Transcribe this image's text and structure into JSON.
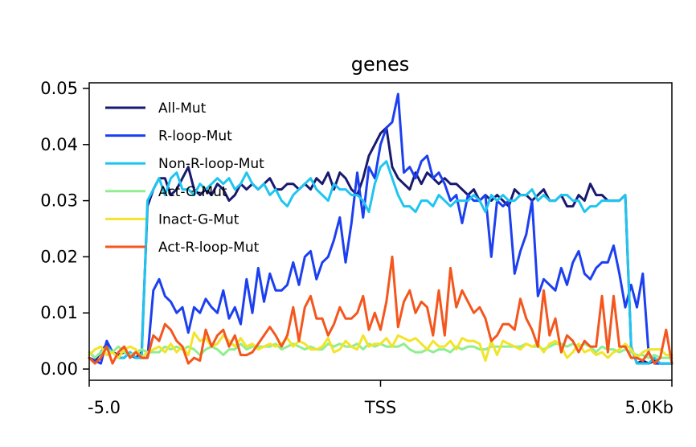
{
  "chart_data": {
    "type": "line",
    "title": "genes",
    "xlabel": "",
    "ylabel": "",
    "x_tick_labels": [
      "-5.0",
      "TSS",
      "5.0Kb"
    ],
    "x_range": [
      -5.0,
      5.0
    ],
    "ylim": [
      -0.002,
      0.051
    ],
    "y_ticks": [
      0.0,
      0.01,
      0.02,
      0.03,
      0.04,
      0.05
    ],
    "y_tick_labels": [
      "0.00",
      "0.01",
      "0.02",
      "0.03",
      "0.04",
      "0.05"
    ],
    "grid": false,
    "legend_position": "upper-left",
    "x": [
      -5.0,
      -4.9,
      -4.8,
      -4.7,
      -4.6,
      -4.5,
      -4.4,
      -4.3,
      -4.2,
      -4.1,
      -4.0,
      -3.9,
      -3.8,
      -3.7,
      -3.6,
      -3.5,
      -3.4,
      -3.3,
      -3.2,
      -3.1,
      -3.0,
      -2.9,
      -2.8,
      -2.7,
      -2.6,
      -2.5,
      -2.4,
      -2.3,
      -2.2,
      -2.1,
      -2.0,
      -1.9,
      -1.8,
      -1.7,
      -1.6,
      -1.5,
      -1.4,
      -1.3,
      -1.2,
      -1.1,
      -1.0,
      -0.9,
      -0.8,
      -0.7,
      -0.6,
      -0.5,
      -0.4,
      -0.3,
      -0.2,
      -0.1,
      0.0,
      0.1,
      0.2,
      0.3,
      0.4,
      0.5,
      0.6,
      0.7,
      0.8,
      0.9,
      1.0,
      1.1,
      1.2,
      1.3,
      1.4,
      1.5,
      1.6,
      1.7,
      1.8,
      1.9,
      2.0,
      2.1,
      2.2,
      2.3,
      2.4,
      2.5,
      2.6,
      2.7,
      2.8,
      2.9,
      3.0,
      3.1,
      3.2,
      3.3,
      3.4,
      3.5,
      3.6,
      3.7,
      3.8,
      3.9,
      4.0,
      4.1,
      4.2,
      4.3,
      4.4,
      4.5,
      4.6,
      4.7,
      4.8,
      4.9,
      5.0
    ],
    "series": [
      {
        "name": "All-Mut",
        "color": "#191970",
        "values": [
          0.002,
          0.0015,
          0.003,
          0.0045,
          0.003,
          0.0025,
          0.003,
          0.0025,
          0.002,
          0.003,
          0.029,
          0.032,
          0.034,
          0.034,
          0.031,
          0.032,
          0.034,
          0.036,
          0.032,
          0.031,
          0.032,
          0.031,
          0.033,
          0.032,
          0.03,
          0.031,
          0.033,
          0.032,
          0.033,
          0.032,
          0.033,
          0.034,
          0.032,
          0.032,
          0.033,
          0.033,
          0.032,
          0.033,
          0.032,
          0.034,
          0.033,
          0.035,
          0.032,
          0.035,
          0.034,
          0.032,
          0.031,
          0.034,
          0.038,
          0.04,
          0.042,
          0.043,
          0.036,
          0.034,
          0.033,
          0.032,
          0.035,
          0.033,
          0.035,
          0.034,
          0.033,
          0.034,
          0.033,
          0.033,
          0.032,
          0.031,
          0.032,
          0.03,
          0.031,
          0.03,
          0.031,
          0.03,
          0.029,
          0.032,
          0.031,
          0.031,
          0.03,
          0.031,
          0.032,
          0.03,
          0.03,
          0.031,
          0.029,
          0.029,
          0.031,
          0.03,
          0.033,
          0.031,
          0.031,
          0.03,
          0.03,
          0.03,
          0.031,
          0.004,
          0.001,
          0.0015,
          0.001,
          0.0015,
          0.001,
          0.001,
          0.001
        ]
      },
      {
        "name": "R-loop-Mut",
        "color": "#1c3ff0",
        "values": [
          0.002,
          0.0015,
          0.001,
          0.005,
          0.003,
          0.002,
          0.002,
          0.003,
          0.002,
          0.002,
          0.002,
          0.014,
          0.016,
          0.013,
          0.012,
          0.01,
          0.011,
          0.0065,
          0.011,
          0.01,
          0.0125,
          0.011,
          0.01,
          0.014,
          0.009,
          0.011,
          0.008,
          0.016,
          0.01,
          0.018,
          0.012,
          0.017,
          0.014,
          0.014,
          0.015,
          0.019,
          0.015,
          0.02,
          0.021,
          0.016,
          0.019,
          0.02,
          0.023,
          0.027,
          0.019,
          0.026,
          0.035,
          0.027,
          0.036,
          0.034,
          0.04,
          0.043,
          0.044,
          0.049,
          0.035,
          0.036,
          0.034,
          0.037,
          0.038,
          0.034,
          0.035,
          0.033,
          0.03,
          0.031,
          0.026,
          0.031,
          0.03,
          0.03,
          0.031,
          0.02,
          0.03,
          0.029,
          0.03,
          0.017,
          0.021,
          0.024,
          0.03,
          0.013,
          0.016,
          0.015,
          0.014,
          0.018,
          0.015,
          0.019,
          0.021,
          0.017,
          0.016,
          0.018,
          0.019,
          0.019,
          0.022,
          0.017,
          0.011,
          0.015,
          0.011,
          0.017,
          0.003,
          0.001,
          0.001,
          0.001,
          0.001
        ]
      },
      {
        "name": "Non-R-loop-Mut",
        "color": "#1ec5f0",
        "values": [
          0.003,
          0.002,
          0.003,
          0.004,
          0.003,
          0.002,
          0.002,
          0.003,
          0.002,
          0.002,
          0.03,
          0.032,
          0.034,
          0.031,
          0.034,
          0.035,
          0.032,
          0.032,
          0.031,
          0.033,
          0.032,
          0.033,
          0.034,
          0.033,
          0.034,
          0.032,
          0.033,
          0.035,
          0.033,
          0.032,
          0.033,
          0.031,
          0.032,
          0.03,
          0.029,
          0.031,
          0.032,
          0.033,
          0.034,
          0.032,
          0.031,
          0.03,
          0.033,
          0.032,
          0.032,
          0.031,
          0.031,
          0.03,
          0.028,
          0.033,
          0.036,
          0.037,
          0.034,
          0.031,
          0.029,
          0.029,
          0.028,
          0.03,
          0.03,
          0.029,
          0.031,
          0.03,
          0.029,
          0.03,
          0.03,
          0.03,
          0.031,
          0.03,
          0.028,
          0.031,
          0.03,
          0.031,
          0.03,
          0.03,
          0.031,
          0.031,
          0.032,
          0.03,
          0.031,
          0.03,
          0.03,
          0.031,
          0.031,
          0.03,
          0.03,
          0.028,
          0.029,
          0.029,
          0.03,
          0.03,
          0.03,
          0.03,
          0.031,
          0.004,
          0.001,
          0.001,
          0.001,
          0.002,
          0.001,
          0.001,
          0.001
        ]
      },
      {
        "name": "Act-G-Mut",
        "color": "#90ee90",
        "values": [
          0.003,
          0.002,
          0.003,
          0.0035,
          0.003,
          0.004,
          0.003,
          0.0025,
          0.003,
          0.0035,
          0.003,
          0.003,
          0.003,
          0.004,
          0.0035,
          0.004,
          0.0035,
          0.004,
          0.0035,
          0.0025,
          0.0035,
          0.004,
          0.0035,
          0.0025,
          0.0035,
          0.0035,
          0.0045,
          0.0035,
          0.004,
          0.004,
          0.004,
          0.004,
          0.0045,
          0.0035,
          0.004,
          0.0045,
          0.004,
          0.0035,
          0.004,
          0.0035,
          0.0035,
          0.0045,
          0.004,
          0.0045,
          0.004,
          0.004,
          0.0045,
          0.0035,
          0.0045,
          0.004,
          0.0045,
          0.004,
          0.004,
          0.004,
          0.0045,
          0.0035,
          0.003,
          0.003,
          0.0035,
          0.003,
          0.0035,
          0.0035,
          0.003,
          0.004,
          0.0035,
          0.004,
          0.004,
          0.0035,
          0.0035,
          0.004,
          0.004,
          0.004,
          0.004,
          0.004,
          0.004,
          0.0045,
          0.004,
          0.004,
          0.0035,
          0.004,
          0.0045,
          0.0045,
          0.004,
          0.0045,
          0.004,
          0.0045,
          0.004,
          0.003,
          0.004,
          0.0035,
          0.0035,
          0.003,
          0.0035,
          0.003,
          0.0025,
          0.0025,
          0.002,
          0.0025,
          0.002,
          0.002,
          0.002
        ]
      },
      {
        "name": "Inact-G-Mut",
        "color": "#f2e42a",
        "values": [
          0.0025,
          0.0035,
          0.004,
          0.0025,
          0.003,
          0.002,
          0.0035,
          0.004,
          0.0035,
          0.002,
          0.003,
          0.0035,
          0.004,
          0.003,
          0.0045,
          0.003,
          0.004,
          0.0025,
          0.0065,
          0.005,
          0.0055,
          0.004,
          0.0045,
          0.006,
          0.005,
          0.004,
          0.0055,
          0.004,
          0.0045,
          0.0035,
          0.004,
          0.0045,
          0.004,
          0.0045,
          0.0055,
          0.004,
          0.005,
          0.0045,
          0.0035,
          0.0035,
          0.004,
          0.0055,
          0.003,
          0.0035,
          0.005,
          0.004,
          0.0035,
          0.006,
          0.004,
          0.0045,
          0.0045,
          0.0055,
          0.004,
          0.006,
          0.0055,
          0.005,
          0.0055,
          0.0045,
          0.0035,
          0.005,
          0.004,
          0.004,
          0.005,
          0.0035,
          0.0055,
          0.005,
          0.005,
          0.0045,
          0.0015,
          0.005,
          0.0025,
          0.005,
          0.0045,
          0.004,
          0.0035,
          0.0045,
          0.004,
          0.0045,
          0.003,
          0.0045,
          0.005,
          0.004,
          0.002,
          0.003,
          0.0045,
          0.003,
          0.0035,
          0.0025,
          0.003,
          0.002,
          0.003,
          0.0035,
          0.0045,
          0.0035,
          0.002,
          0.003,
          0.0035,
          0.0035,
          0.0035,
          0.0025,
          0.0025
        ]
      },
      {
        "name": "Act-R-loop-Mut",
        "color": "#f4561d",
        "values": [
          0.002,
          0.001,
          0.002,
          0.004,
          0.001,
          0.003,
          0.004,
          0.002,
          0.003,
          0.002,
          0.002,
          0.006,
          0.005,
          0.008,
          0.007,
          0.005,
          0.004,
          0.001,
          0.002,
          0.0015,
          0.007,
          0.004,
          0.006,
          0.007,
          0.004,
          0.006,
          0.0025,
          0.0025,
          0.003,
          0.0045,
          0.006,
          0.0075,
          0.006,
          0.004,
          0.006,
          0.011,
          0.005,
          0.011,
          0.013,
          0.009,
          0.009,
          0.006,
          0.008,
          0.011,
          0.009,
          0.009,
          0.01,
          0.013,
          0.007,
          0.01,
          0.007,
          0.012,
          0.02,
          0.0075,
          0.012,
          0.014,
          0.01,
          0.012,
          0.011,
          0.006,
          0.014,
          0.006,
          0.018,
          0.011,
          0.014,
          0.012,
          0.01,
          0.011,
          0.009,
          0.005,
          0.006,
          0.008,
          0.008,
          0.007,
          0.0125,
          0.009,
          0.007,
          0.004,
          0.014,
          0.006,
          0.009,
          0.003,
          0.006,
          0.005,
          0.003,
          0.005,
          0.004,
          0.004,
          0.013,
          0.003,
          0.013,
          0.004,
          0.004,
          0.002,
          0.002,
          0.0015,
          0.003,
          0.001,
          0.002,
          0.007,
          0.001
        ]
      }
    ]
  }
}
